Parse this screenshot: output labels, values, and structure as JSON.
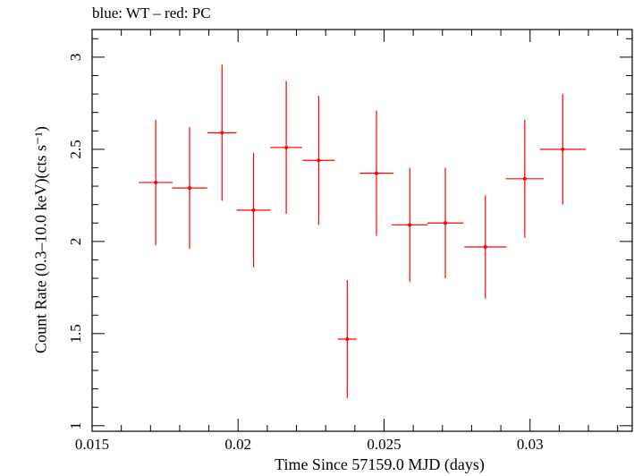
{
  "chart_data": {
    "type": "scatter",
    "title": "blue: WT – red: PC",
    "xlabel": "Time Since 57159.0 MJD (days)",
    "ylabel": "Count Rate (0.3–10.0 keV)(cts s⁻¹)",
    "xlim": [
      0.015,
      0.0335
    ],
    "ylim": [
      0.97,
      3.15
    ],
    "xticks": [
      0.015,
      0.02,
      0.025,
      0.03
    ],
    "xtick_labels": [
      "0.015",
      "0.02",
      "0.025",
      "0.03"
    ],
    "yticks": [
      1,
      1.5,
      2,
      2.5,
      3
    ],
    "ytick_labels": [
      "1",
      "1.5",
      "2",
      "2.5",
      "3"
    ],
    "grid": false,
    "series": [
      {
        "color": "#ff0000",
        "x": [
          0.01718,
          0.01834,
          0.01945,
          0.02053,
          0.02165,
          0.02276,
          0.02374,
          0.02474,
          0.02588,
          0.0271,
          0.02847,
          0.02982,
          0.03112
        ],
        "xerr": [
          0.00058,
          0.0006,
          0.0005,
          0.00058,
          0.00055,
          0.00055,
          0.00032,
          0.00058,
          0.00062,
          0.00062,
          0.00072,
          0.00065,
          0.00078
        ],
        "y": [
          2.32,
          2.29,
          2.59,
          2.17,
          2.51,
          2.44,
          1.47,
          2.37,
          2.09,
          2.1,
          1.97,
          2.34,
          2.5
        ],
        "yerr": [
          0.34,
          0.33,
          0.37,
          0.31,
          0.36,
          0.35,
          0.32,
          0.34,
          0.31,
          0.3,
          0.28,
          0.32,
          0.3
        ]
      }
    ]
  }
}
